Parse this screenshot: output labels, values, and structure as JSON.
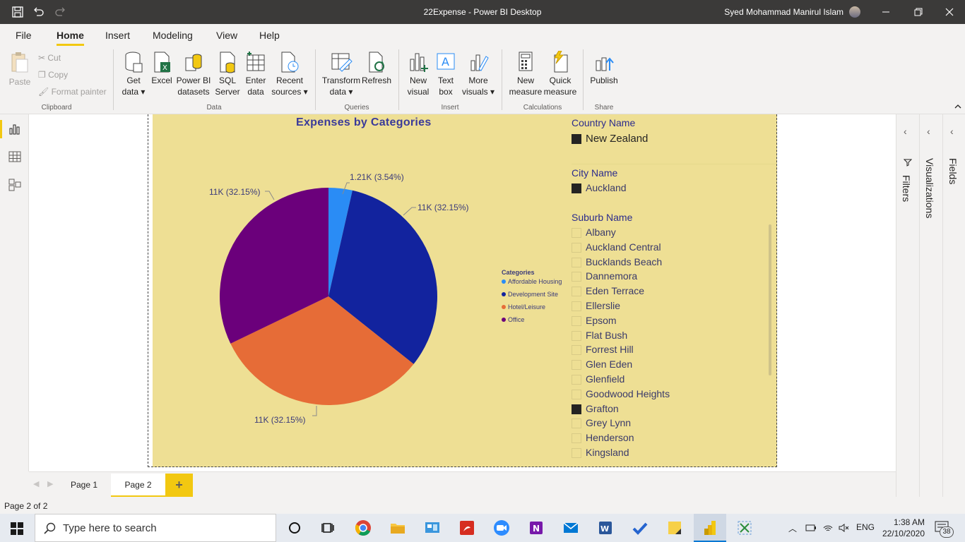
{
  "window": {
    "title": "22Expense - Power BI Desktop",
    "user": "Syed Mohammad Manirul Islam"
  },
  "menu": {
    "tabs": [
      "File",
      "Home",
      "Insert",
      "Modeling",
      "View",
      "Help"
    ],
    "active": "Home"
  },
  "ribbon": {
    "clipboard": {
      "paste": "Paste",
      "cut": "Cut",
      "copy": "Copy",
      "format_painter": "Format painter",
      "group": "Clipboard"
    },
    "data": {
      "get_data": [
        "Get",
        "data"
      ],
      "excel": "Excel",
      "pbi_datasets": [
        "Power BI",
        "datasets"
      ],
      "sql": [
        "SQL",
        "Server"
      ],
      "enter": [
        "Enter",
        "data"
      ],
      "recent": [
        "Recent",
        "sources"
      ],
      "group": "Data"
    },
    "queries": {
      "transform": [
        "Transform",
        "data"
      ],
      "refresh": "Refresh",
      "group": "Queries"
    },
    "insert": {
      "new_visual": [
        "New",
        "visual"
      ],
      "text_box": [
        "Text",
        "box"
      ],
      "more_visuals": [
        "More",
        "visuals"
      ],
      "group": "Insert"
    },
    "calculations": {
      "new_measure": [
        "New",
        "measure"
      ],
      "quick_measure": [
        "Quick",
        "measure"
      ],
      "group": "Calculations"
    },
    "share": {
      "publish": "Publish",
      "group": "Share"
    }
  },
  "chart": {
    "title": "Expenses by Categories",
    "labels": [
      "1.21K (3.54%)",
      "11K (32.15%)",
      "11K (32.15%)",
      "11K (32.15%)"
    ],
    "legend_title": "Categories",
    "colors": [
      "#2a8cf5",
      "#12239e",
      "#e66c37",
      "#6b007b"
    ]
  },
  "chart_data": {
    "type": "pie",
    "title": "Expenses by Categories",
    "legend_title": "Categories",
    "legend_position": "right",
    "categories": [
      "Affordable Housing",
      "Development Site",
      "Hotel/Leisure",
      "Office"
    ],
    "values": [
      1210,
      11000,
      11000,
      11000
    ],
    "percentages": [
      3.54,
      32.15,
      32.15,
      32.15
    ],
    "data_labels": [
      "1.21K (3.54%)",
      "11K (32.15%)",
      "11K (32.15%)",
      "11K (32.15%)"
    ]
  },
  "slicers": {
    "country": {
      "title": "Country Name",
      "items": [
        {
          "label": "New Zealand",
          "checked": true
        }
      ]
    },
    "city": {
      "title": "City Name",
      "items": [
        {
          "label": "Auckland",
          "checked": true
        }
      ]
    },
    "suburb": {
      "title": "Suburb Name",
      "items": [
        {
          "label": "Albany",
          "checked": false
        },
        {
          "label": "Auckland Central",
          "checked": false
        },
        {
          "label": "Bucklands Beach",
          "checked": false
        },
        {
          "label": "Dannemora",
          "checked": false
        },
        {
          "label": "Eden Terrace",
          "checked": false
        },
        {
          "label": "Ellerslie",
          "checked": false
        },
        {
          "label": "Epsom",
          "checked": false
        },
        {
          "label": "Flat Bush",
          "checked": false
        },
        {
          "label": "Forrest Hill",
          "checked": false
        },
        {
          "label": "Glen Eden",
          "checked": false
        },
        {
          "label": "Glenfield",
          "checked": false
        },
        {
          "label": "Goodwood Heights",
          "checked": false
        },
        {
          "label": "Grafton",
          "checked": true
        },
        {
          "label": "Grey Lynn",
          "checked": false
        },
        {
          "label": "Henderson",
          "checked": false
        },
        {
          "label": "Kingsland",
          "checked": false
        }
      ]
    }
  },
  "panes": {
    "filters": "Filters",
    "visualizations": "Visualizations",
    "fields": "Fields"
  },
  "pages": {
    "tabs": [
      "Page 1",
      "Page 2"
    ],
    "active": "Page 2",
    "add": "+"
  },
  "status": {
    "text": "Page 2 of 2"
  },
  "taskbar": {
    "search_placeholder": "Type here to search",
    "lang": "ENG",
    "time": "1:38 AM",
    "date": "22/10/2020",
    "notifications": "38"
  }
}
